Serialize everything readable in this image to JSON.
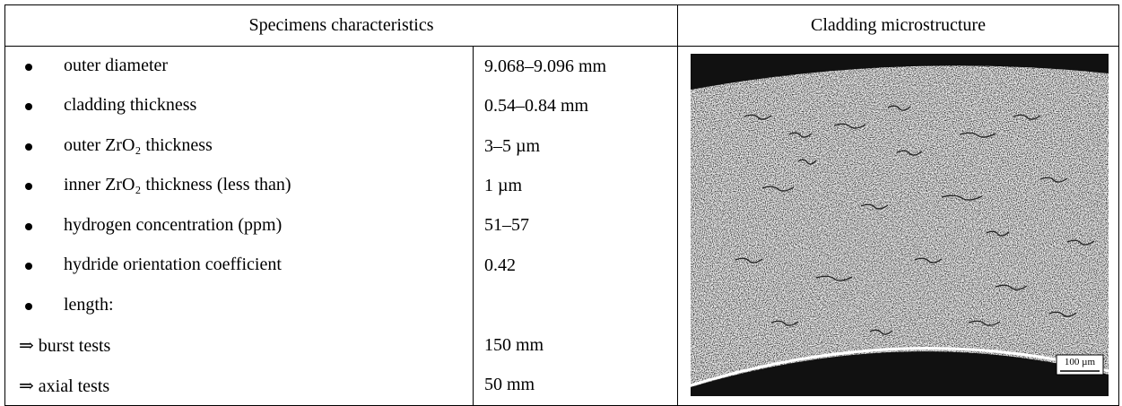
{
  "table": {
    "headers": [
      "Specimens characteristics",
      "Cladding microstructure"
    ],
    "rows": [
      [
        "outer diameter",
        "9.068–9.096 mm"
      ],
      [
        "cladding thickness",
        "0.54–0.84 mm"
      ],
      [
        "outer ZrO₂ thickness",
        "3–5 µm"
      ],
      [
        "inner ZrO₂ thickness (less than)",
        "1 µm"
      ],
      [
        "hydrogen concentration (ppm)",
        "51–57"
      ],
      [
        "hydride orientation coefficient",
        "0.42"
      ],
      [
        "length:",
        null
      ],
      [
        "⇒ burst tests",
        "150 mm"
      ],
      [
        "⇒ axial tests",
        "50 mm"
      ]
    ],
    "bulleted_rows": [
      0,
      1,
      2,
      3,
      4,
      5,
      6
    ]
  },
  "image": {
    "scale_bar": "100 µm"
  }
}
